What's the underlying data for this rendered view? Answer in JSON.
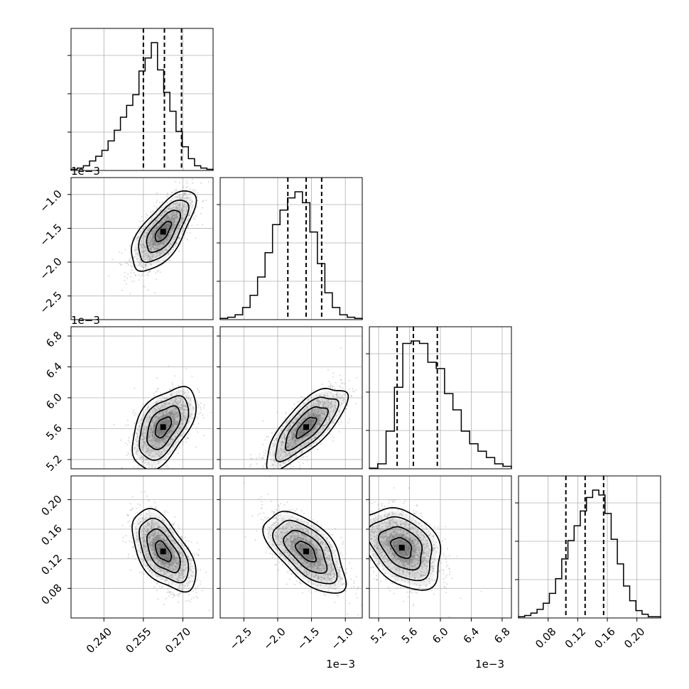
{
  "figure": {
    "type": "corner-plot",
    "colors": {
      "line": "#000000",
      "grid": "#b0b0b0",
      "points": "#9a9a9a",
      "density": "#4a4a4a"
    }
  },
  "chart_data": {
    "type": "corner",
    "parameters": [
      {
        "range": [
          0.2275,
          0.2815
        ],
        "ticks": [
          0.24,
          0.255,
          0.27
        ],
        "tick_labels": [
          "0.240",
          "0.255",
          "0.270"
        ],
        "offset_text": "",
        "quantiles": [
          0.255,
          0.263,
          0.2695
        ],
        "hist": [
          1,
          2,
          4,
          8,
          12,
          17,
          25,
          34,
          45,
          55,
          64,
          84,
          95,
          108,
          85,
          66,
          50,
          33,
          20,
          10,
          4,
          2,
          1
        ]
      },
      {
        "range": [
          -2.85,
          -0.75
        ],
        "ticks": [
          -2.5,
          -2.0,
          -1.5,
          -1.0
        ],
        "tick_labels": [
          "−2.5",
          "−2.0",
          "−1.5",
          "−1.0"
        ],
        "offset_text": "1e−3",
        "quantiles": [
          -1.85,
          -1.58,
          -1.35
        ],
        "hist": [
          1,
          2,
          4,
          10,
          20,
          35,
          55,
          78,
          90,
          100,
          105,
          96,
          72,
          46,
          22,
          10,
          4,
          2,
          1
        ]
      },
      {
        "range": [
          5.08,
          6.92
        ],
        "ticks": [
          5.2,
          5.6,
          6.0,
          6.4,
          6.8
        ],
        "tick_labels": [
          "5.2",
          "5.6",
          "6.0",
          "6.4",
          "6.8"
        ],
        "offset_text": "1e−3",
        "quantiles": [
          5.44,
          5.65,
          5.96
        ],
        "hist": [
          0.5,
          4,
          30,
          65,
          100,
          102,
          100,
          85,
          80,
          60,
          47,
          30,
          20,
          14,
          9,
          4,
          2
        ]
      },
      {
        "range": [
          0.04,
          0.232
        ],
        "ticks": [
          0.08,
          0.12,
          0.16,
          0.2
        ],
        "tick_labels": [
          "0.08",
          "0.12",
          "0.16",
          "0.20"
        ],
        "offset_text": "",
        "quantiles": [
          0.104,
          0.13,
          0.155
        ],
        "hist": [
          1,
          2,
          4,
          7,
          12,
          20,
          32,
          48,
          63,
          75,
          87,
          98,
          104,
          100,
          85,
          64,
          44,
          26,
          14,
          6,
          3,
          1,
          1
        ]
      }
    ],
    "pairs": [
      {
        "x": 0,
        "y": 1,
        "mean": [
          0.2625,
          -1.55
        ],
        "sd": [
          0.0055,
          0.27
        ],
        "rho": 0.68
      },
      {
        "x": 0,
        "y": 2,
        "mean": [
          0.2625,
          5.62
        ],
        "sd": [
          0.0055,
          0.24
        ],
        "rho": 0.5
      },
      {
        "x": 0,
        "y": 3,
        "mean": [
          0.2625,
          0.13
        ],
        "sd": [
          0.0055,
          0.025
        ],
        "rho": -0.55
      },
      {
        "x": 1,
        "y": 2,
        "mean": [
          -1.58,
          5.62
        ],
        "sd": [
          0.27,
          0.24
        ],
        "rho": 0.75
      },
      {
        "x": 1,
        "y": 3,
        "mean": [
          -1.58,
          0.13
        ],
        "sd": [
          0.27,
          0.025
        ],
        "rho": -0.6
      },
      {
        "x": 2,
        "y": 3,
        "mean": [
          5.5,
          0.135
        ],
        "sd": [
          0.24,
          0.025
        ],
        "rho": -0.35
      }
    ]
  }
}
